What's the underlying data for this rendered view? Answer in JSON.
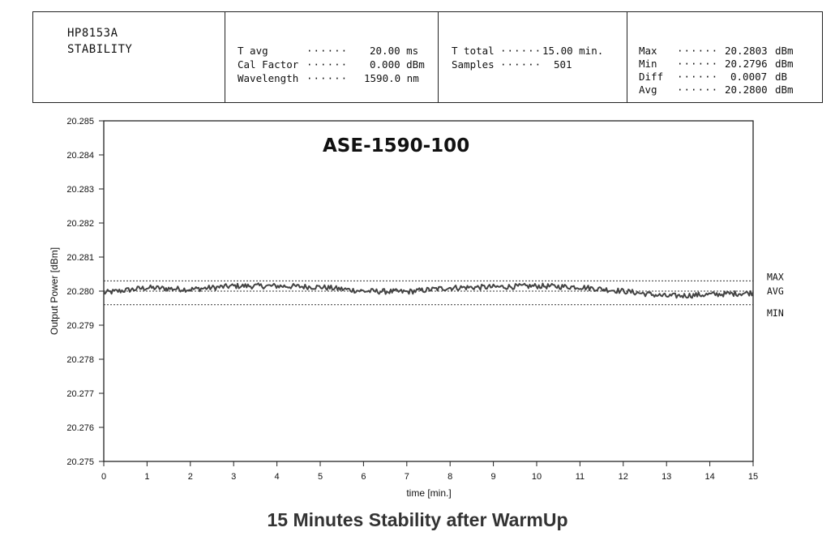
{
  "header": {
    "instrument": "HP8153A",
    "mode": "STABILITY",
    "settings": [
      {
        "label": "T avg",
        "dots": "······",
        "value": "20.00 ms"
      },
      {
        "label": "Cal Factor",
        "dots": "······",
        "value": "0.000 dBm"
      },
      {
        "label": "Wavelength",
        "dots": "······",
        "value": "1590.0 nm"
      }
    ],
    "timing": [
      {
        "label": "T total",
        "dots": "······",
        "value": "15.00 min."
      },
      {
        "label": "Samples",
        "dots": "······",
        "value": "501"
      }
    ],
    "stats": [
      {
        "label": "Max",
        "dots": "······",
        "value": "20.2803",
        "unit": "dBm"
      },
      {
        "label": "Min",
        "dots": "······",
        "value": "20.2796",
        "unit": "dBm"
      },
      {
        "label": "Diff",
        "dots": "······",
        "value": "0.0007",
        "unit": "dB"
      },
      {
        "label": "Avg",
        "dots": "······",
        "value": "20.2800",
        "unit": "dBm"
      }
    ]
  },
  "chart_data": {
    "type": "line",
    "title": "ASE-1590-100",
    "xlabel": "time [min.]",
    "ylabel": "Output Power [dBm]",
    "xlim": [
      0,
      15
    ],
    "ylim": [
      20.275,
      20.285
    ],
    "x_ticks": [
      "0",
      "1",
      "2",
      "3",
      "4",
      "5",
      "6",
      "7",
      "8",
      "9",
      "10",
      "11",
      "12",
      "13",
      "14",
      "15"
    ],
    "y_ticks": [
      "20.275",
      "20.276",
      "20.277",
      "20.278",
      "20.279",
      "20.280",
      "20.281",
      "20.282",
      "20.283",
      "20.284",
      "20.285"
    ],
    "grid": false,
    "samples": 501,
    "series": [
      {
        "trend_x": [
          0,
          1,
          2,
          3,
          4,
          5,
          6,
          7,
          8,
          9,
          10,
          11,
          12,
          13,
          14,
          15
        ],
        "trend_y": [
          20.27995,
          20.2801,
          20.28005,
          20.28015,
          20.28015,
          20.28012,
          20.28,
          20.27998,
          20.2801,
          20.28012,
          20.28015,
          20.28012,
          20.28,
          20.27985,
          20.2799,
          20.27995
        ],
        "noise_amplitude": 8e-05,
        "color": "#444444"
      }
    ],
    "reference_lines": [
      {
        "label": "MAX",
        "value": 20.2803
      },
      {
        "label": "AVG",
        "value": 20.28
      },
      {
        "label": "MIN",
        "value": 20.2796
      }
    ]
  },
  "caption": "15 Minutes Stability after WarmUp"
}
